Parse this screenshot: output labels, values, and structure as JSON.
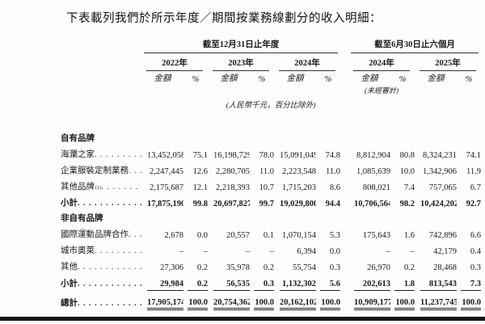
{
  "title": "下表載列我們於所示年度／期間按業務線劃分的收入明細：",
  "colors": {
    "text": "#1a1a1a",
    "rule": "#333333",
    "bottom_bar": "#161616"
  },
  "table": {
    "group_headers": [
      {
        "label": "截至12月31日止年度",
        "span_years": 3
      },
      {
        "label": "截至6月30日止六個月",
        "span_years": 2
      }
    ],
    "year_headers": [
      "2022年",
      "2023年",
      "2024年",
      "2024年",
      "2025年"
    ],
    "amount_label": "金額",
    "percent_label": "%",
    "unaudited_note": "(未經審計)",
    "unit_note": "(人民幣千元，百分比除外)",
    "rows": [
      {
        "type": "section",
        "label": "自有品牌"
      },
      {
        "type": "data",
        "label": "海瀾之家",
        "values": [
          "13,452,058",
          "75.1",
          "16,198,729",
          "78.0",
          "15,091,049",
          "74.8",
          "8,812,904",
          "80.8",
          "8,324,231",
          "74.1"
        ]
      },
      {
        "type": "data",
        "label": "企業服裝定制業務",
        "values": [
          "2,247,445",
          "12.6",
          "2,280,705",
          "11.0",
          "2,223,548",
          "11.0",
          "1,085,639",
          "10.0",
          "1,342,906",
          "11.9"
        ]
      },
      {
        "type": "data",
        "label": "其他品牌",
        "sup": "(1)",
        "values": [
          "2,175,687",
          "12.1",
          "2,218,393",
          "10.7",
          "1,715,203",
          "8.6",
          "808,021",
          "7.4",
          "757,065",
          "6.7"
        ]
      },
      {
        "type": "subtotal",
        "label": "小計",
        "values": [
          "17,875,190",
          "99.8",
          "20,697,827",
          "99.7",
          "19,029,800",
          "94.4",
          "10,706,564",
          "98.2",
          "10,424,202",
          "92.7"
        ]
      },
      {
        "type": "section",
        "label": "非自有品牌"
      },
      {
        "type": "data",
        "label": "國際運動品牌合作",
        "values": [
          "2,678",
          "0.0",
          "20,557",
          "0.1",
          "1,070,154",
          "5.3",
          "175,643",
          "1.6",
          "742,896",
          "6.6"
        ]
      },
      {
        "type": "data",
        "label": "城市奧萊",
        "values": [
          "–",
          "–",
          "–",
          "–",
          "6,394",
          "0.0",
          "–",
          "–",
          "42,179",
          "0.4"
        ]
      },
      {
        "type": "data",
        "label": "其他",
        "values": [
          "27,306",
          "0.2",
          "35,978",
          "0.2",
          "55,754",
          "0.3",
          "26,970",
          "0.2",
          "28,468",
          "0.3"
        ]
      },
      {
        "type": "subtotal2",
        "label": "小計",
        "values": [
          "29,984",
          "0.2",
          "56,535",
          "0.3",
          "1,132,302",
          "5.6",
          "202,613",
          "1.8",
          "813,543",
          "7.3"
        ]
      },
      {
        "type": "total",
        "label": "總計",
        "values": [
          "17,905,174",
          "100.0",
          "20,754,362",
          "100.0",
          "20,162,102",
          "100.0",
          "10,909,177",
          "100.0",
          "11,237,745",
          "100.0"
        ]
      }
    ]
  }
}
